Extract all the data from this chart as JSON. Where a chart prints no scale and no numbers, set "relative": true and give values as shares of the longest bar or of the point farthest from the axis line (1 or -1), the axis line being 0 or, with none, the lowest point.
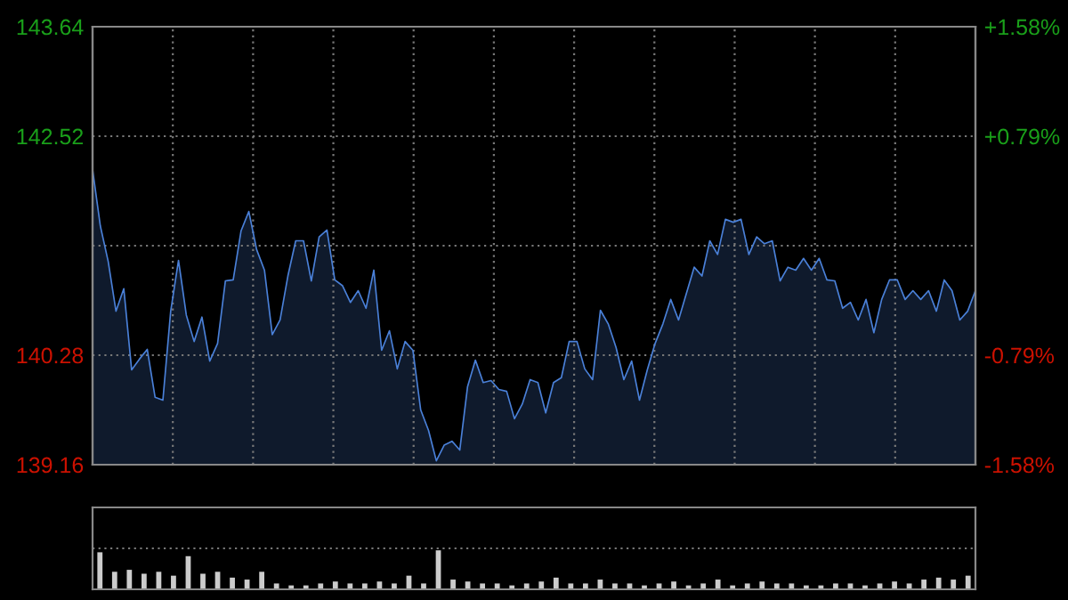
{
  "chart_data": [
    {
      "type": "area",
      "categories": [
        null,
        null,
        null,
        null,
        null,
        null,
        null,
        null,
        null,
        null,
        null,
        null,
        null,
        null,
        null,
        null,
        null,
        null,
        null,
        null,
        null,
        null,
        null,
        null,
        null,
        null,
        null,
        null,
        null,
        null,
        null,
        null,
        null,
        null,
        null,
        null,
        null,
        null,
        null,
        null,
        null,
        null,
        null,
        null,
        null,
        null,
        null,
        null,
        null,
        null,
        null,
        null,
        null,
        null,
        null,
        null,
        null,
        null,
        null,
        null,
        null,
        null,
        null,
        null,
        null,
        null,
        null,
        null,
        null,
        null,
        null,
        null,
        null,
        null,
        null,
        null,
        null,
        null,
        null,
        null,
        null,
        null,
        null,
        null,
        null,
        null,
        null,
        null,
        null,
        null,
        null,
        null,
        null,
        null,
        null,
        null,
        null,
        null,
        null,
        null,
        null,
        null,
        null,
        null,
        null,
        null,
        null,
        null,
        null,
        null,
        null,
        null,
        null,
        null
      ],
      "series": [
        {
          "color": "#4a80d8",
          "values": [
            142.18,
            141.6,
            141.24,
            140.73,
            140.96,
            140.13,
            140.24,
            140.34,
            139.85,
            139.82,
            140.73,
            141.25,
            140.69,
            140.42,
            140.67,
            140.22,
            140.4,
            141.04,
            141.05,
            141.55,
            141.75,
            141.36,
            141.15,
            140.49,
            140.64,
            141.09,
            141.45,
            141.45,
            141.04,
            141.49,
            141.56,
            141.05,
            140.99,
            140.82,
            140.94,
            140.76,
            141.15,
            140.33,
            140.53,
            140.14,
            140.42,
            140.33,
            139.72,
            139.51,
            139.2,
            139.36,
            139.4,
            139.31,
            139.96,
            140.23,
            140.0,
            140.02,
            139.93,
            139.91,
            139.63,
            139.78,
            140.03,
            140.0,
            139.69,
            140.0,
            140.05,
            140.42,
            140.42,
            140.14,
            140.03,
            140.74,
            140.6,
            140.36,
            140.03,
            140.22,
            139.82,
            140.13,
            140.4,
            140.6,
            140.85,
            140.64,
            140.91,
            141.18,
            141.09,
            141.45,
            141.31,
            141.67,
            141.64,
            141.67,
            141.31,
            141.49,
            141.42,
            141.45,
            141.04,
            141.18,
            141.15,
            141.27,
            141.15,
            141.27,
            141.05,
            141.04,
            140.76,
            140.82,
            140.64,
            140.85,
            140.51,
            140.85,
            141.05,
            141.05,
            140.85,
            140.94,
            140.85,
            140.94,
            140.73,
            141.05,
            140.94,
            140.64,
            140.73,
            140.94
          ]
        }
      ],
      "ylim": [
        139.16,
        143.64
      ],
      "yticks": [
        139.16,
        140.28,
        {
          "value": 141.4,
          "label": null
        },
        142.52,
        143.64
      ],
      "y2lim": [
        -1.58,
        1.58
      ],
      "y2ticks": [
        {
          "value": -1.58,
          "label": "-1.58%"
        },
        {
          "value": -0.79,
          "label": "-0.79%"
        },
        {
          "value": 0.79,
          "label": "+0.79%"
        },
        {
          "value": 1.58,
          "label": "+1.58%"
        }
      ],
      "grid": true,
      "tick_labels": "y"
    },
    {
      "type": "bar",
      "relative": true,
      "color": "#cccccc",
      "categories": [
        null,
        null,
        null,
        null,
        null,
        null,
        null,
        null,
        null,
        null,
        null,
        null,
        null,
        null,
        null,
        null,
        null,
        null,
        null,
        null,
        null,
        null,
        null,
        null,
        null,
        null,
        null,
        null,
        null,
        null,
        null,
        null,
        null,
        null,
        null,
        null,
        null,
        null,
        null,
        null,
        null,
        null,
        null,
        null,
        null,
        null,
        null,
        null,
        null,
        null,
        null,
        null,
        null,
        null,
        null,
        null,
        null,
        null,
        null,
        null
      ],
      "values": [
        0.95,
        0.45,
        0.5,
        0.4,
        0.45,
        0.35,
        0.85,
        0.4,
        0.45,
        0.3,
        0.25,
        0.45,
        0.15,
        0.1,
        0.1,
        0.15,
        0.2,
        0.15,
        0.15,
        0.2,
        0.15,
        0.35,
        0.15,
        1.0,
        0.25,
        0.2,
        0.15,
        0.15,
        0.1,
        0.15,
        0.2,
        0.3,
        0.15,
        0.15,
        0.25,
        0.15,
        0.15,
        0.1,
        0.15,
        0.2,
        0.1,
        0.15,
        0.25,
        0.1,
        0.15,
        0.2,
        0.15,
        0.15,
        0.1,
        0.1,
        0.15,
        0.15,
        0.1,
        0.15,
        0.2,
        0.15,
        0.25,
        0.3,
        0.25,
        0.35
      ],
      "grid": "y",
      "tick_labels": false
    }
  ]
}
